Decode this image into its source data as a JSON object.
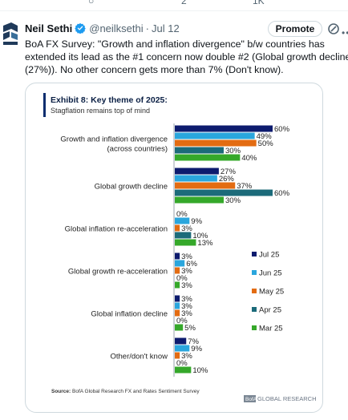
{
  "tweet": {
    "author_name": "Neil Sethi",
    "handle": "@neilksethi",
    "separator": "·",
    "date": "Jul 12",
    "promote_label": "Promote",
    "text": "BoA FX Survey: \"Growth and inflation divergence\" b/w countries has extended its lead as the #1 concern now double #2 (Global growth decline (27%)). No other concern gets more than 7% (Don't know).",
    "icons": [
      "verified-badge-icon",
      "promote-icon",
      "more-options-icon",
      "reply-icon",
      "retweet-icon",
      "analytics-icon"
    ],
    "top_strip_counts": [
      "2",
      "1K"
    ]
  },
  "chart_data": {
    "type": "bar",
    "orientation": "horizontal",
    "title": "Exhibit 8: Key theme of 2025:",
    "subtitle": "Stagflation remains top of mind",
    "categories": [
      [
        "Growth and inflation divergence",
        "(across countries)"
      ],
      [
        "Global growth decline"
      ],
      [
        "Global inflation re-acceleration"
      ],
      [
        "Global growth re-acceleration"
      ],
      [
        "Global inflation decline"
      ],
      [
        "Other/don't know"
      ]
    ],
    "series": [
      {
        "name": "Jul 25",
        "color": "#0d1b6e",
        "values": [
          60,
          27,
          0,
          3,
          3,
          7
        ]
      },
      {
        "name": "Jun 25",
        "color": "#2aa6dd",
        "values": [
          49,
          26,
          9,
          6,
          3,
          9
        ]
      },
      {
        "name": "May 25",
        "color": "#e36c12",
        "values": [
          50,
          37,
          3,
          3,
          3,
          3
        ]
      },
      {
        "name": "Apr 25",
        "color": "#1c6b7a",
        "values": [
          30,
          60,
          10,
          0,
          0,
          0
        ]
      },
      {
        "name": "Mar 25",
        "color": "#35a82a",
        "values": [
          40,
          30,
          13,
          3,
          5,
          10
        ]
      }
    ],
    "value_suffix": "%",
    "xlim": [
      0,
      60
    ],
    "legend_position": "right",
    "grid": false,
    "source_label": "Source:",
    "source_text": "BofA Global Research FX and Rates Sentiment Survey",
    "brand_badge": "BofA",
    "brand_text": "GLOBAL RESEARCH",
    "colors": {
      "accent_bar": "#0a2d6e",
      "brand_badge_bg": "#7b8794"
    }
  }
}
